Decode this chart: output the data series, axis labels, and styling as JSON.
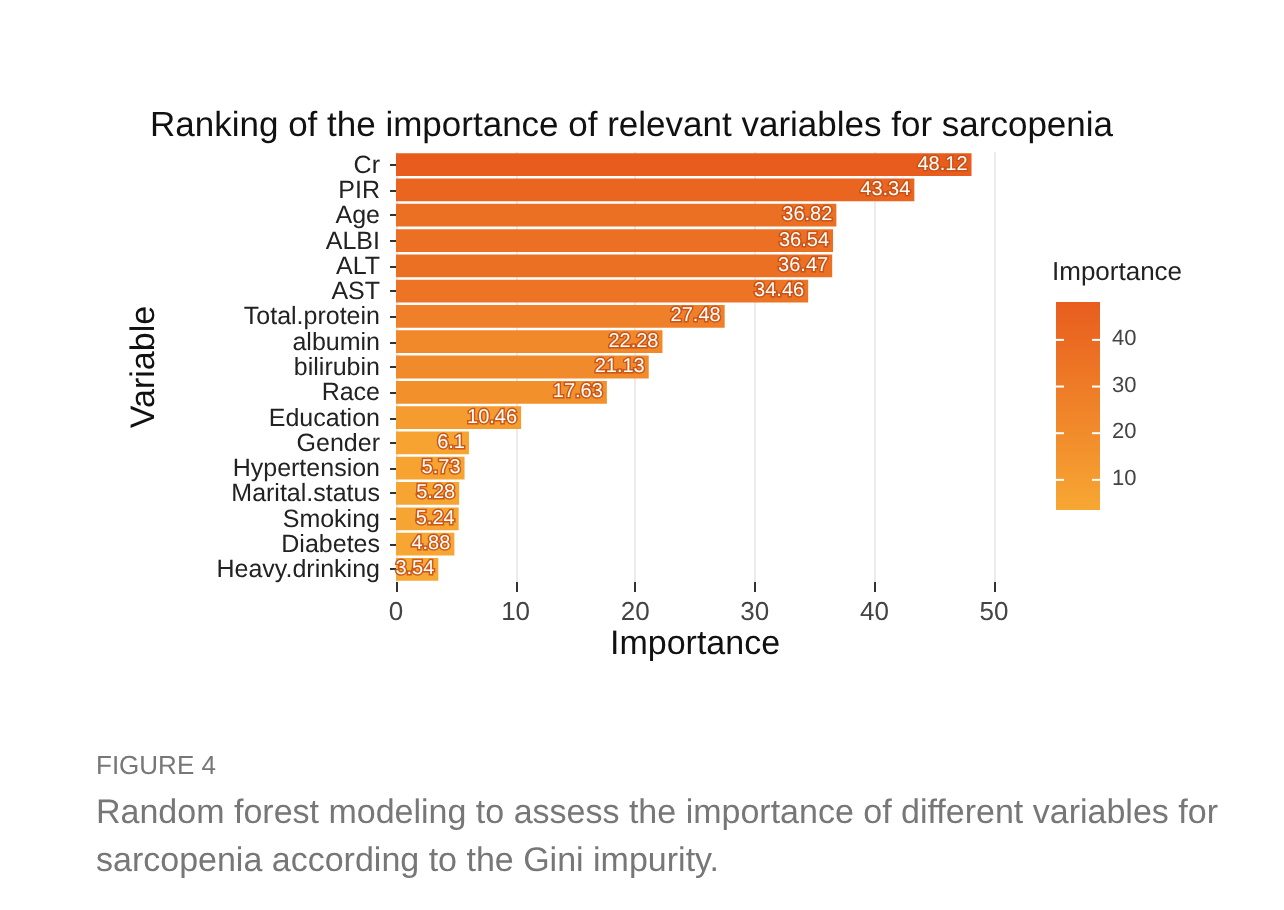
{
  "chart_data": {
    "type": "bar",
    "orientation": "horizontal",
    "title": "Ranking of the importance of relevant variables for sarcopenia",
    "xlabel": "Importance",
    "ylabel": "Variable",
    "clabel": "Importance",
    "categories": [
      "Cr",
      "PIR",
      "Age",
      "ALBI",
      "ALT",
      "AST",
      "Total.protein",
      "albumin",
      "bilirubin",
      "Race",
      "Education",
      "Gender",
      "Hypertension",
      "Marital.status",
      "Smoking",
      "Diabetes",
      "Heavy.drinking"
    ],
    "values": [
      48.12,
      43.34,
      36.82,
      36.54,
      36.47,
      34.46,
      27.48,
      22.28,
      21.13,
      17.63,
      10.46,
      6.1,
      5.73,
      5.28,
      5.24,
      4.88,
      3.54
    ],
    "colors": [
      "#e85d1e",
      "#ea6520",
      "#ec7023",
      "#ec7024",
      "#ec7024",
      "#ed7424",
      "#ef7f28",
      "#f1882a",
      "#f18a2b",
      "#f2902c",
      "#f59c30",
      "#f6a332",
      "#f6a332",
      "#f6a432",
      "#f6a432",
      "#f7a533",
      "#f7a733"
    ],
    "data_labels": true,
    "xlim": [
      0,
      50
    ],
    "xticks": [
      0,
      10,
      20,
      30,
      40,
      50
    ],
    "grid": "x",
    "clim": [
      3.54,
      48.12
    ],
    "cticks": [
      10,
      20,
      30,
      40
    ],
    "annotations": [
      "FIGURE 4",
      "Random forest modeling to assess the importance of different variables for sarcopenia according to the Gini impurity."
    ]
  }
}
